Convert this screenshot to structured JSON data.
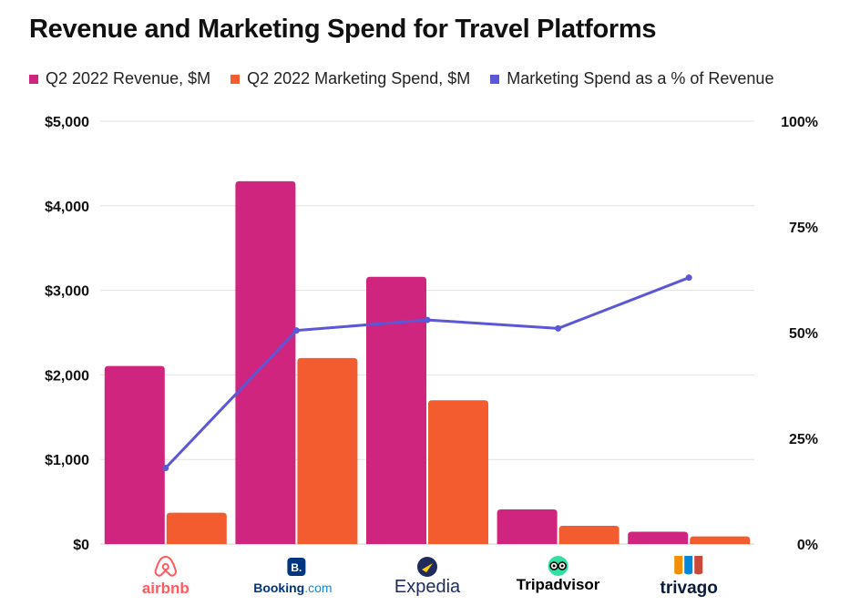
{
  "title": "Revenue and Marketing Spend for Travel Platforms",
  "legend": [
    {
      "label": "Q2 2022 Revenue, $M",
      "color": "#D0257E"
    },
    {
      "label": "Q2 2022 Marketing Spend, $M",
      "color": "#F25C2E"
    },
    {
      "label": "Marketing Spend as a % of Revenue",
      "color": "#5B57D6"
    }
  ],
  "chart_data": {
    "type": "bar",
    "categories": [
      "airbnb",
      "Booking.com",
      "Expedia",
      "Tripadvisor",
      "trivago"
    ],
    "series": [
      {
        "name": "Q2 2022 Revenue, $M",
        "type": "bar",
        "axis": "left",
        "color": "#D0257E",
        "values": [
          2105,
          4290,
          3160,
          410,
          145
        ]
      },
      {
        "name": "Q2 2022 Marketing Spend, $M",
        "type": "bar",
        "axis": "left",
        "color": "#F25C2E",
        "values": [
          370,
          2200,
          1700,
          215,
          90
        ]
      },
      {
        "name": "Marketing Spend as a % of Revenue",
        "type": "line",
        "axis": "right",
        "color": "#5B57D6",
        "values": [
          18,
          50.5,
          53,
          51,
          63
        ]
      }
    ],
    "left_axis": {
      "min": 0,
      "max": 5000,
      "ticks": [
        "$0",
        "$1,000",
        "$2,000",
        "$3,000",
        "$4,000",
        "$5,000"
      ]
    },
    "right_axis": {
      "min": 0,
      "max": 100,
      "ticks": [
        "0%",
        "25%",
        "50%",
        "75%",
        "100%"
      ]
    },
    "grid": true,
    "legend_position": "top-left",
    "logos": [
      {
        "text": "airbnb",
        "icon": "airbnb-logo-icon",
        "color": "#FF5A5F"
      },
      {
        "text": "Booking",
        "suffix": ".com",
        "badge": "B.",
        "icon": "booking-logo-icon",
        "color": "#003580",
        "suffix_color": "#0A8BD8"
      },
      {
        "text": "Expedia",
        "icon": "expedia-logo-icon",
        "color": "#1F2B5B"
      },
      {
        "text": "Tripadvisor",
        "icon": "tripadvisor-logo-icon",
        "color": "#000000"
      },
      {
        "text": "trivago",
        "icon": "trivago-logo-icon",
        "color": "#0A1A3A"
      }
    ]
  }
}
